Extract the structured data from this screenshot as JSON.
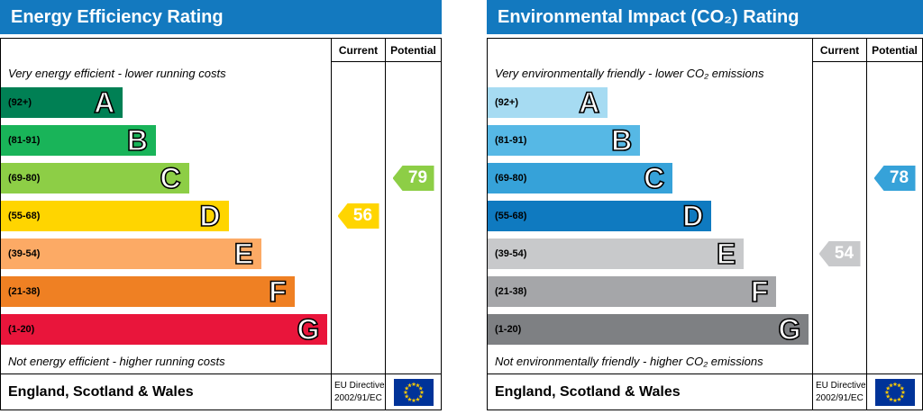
{
  "colors": {
    "header_bg": "#1379bf",
    "header_text": "#ffffff",
    "border": "#000000",
    "flag_bg": "#003399",
    "flag_stars": "#ffcc00"
  },
  "chart_data": [
    {
      "type": "bar",
      "title": "Energy Efficiency Rating",
      "columns": [
        "Current",
        "Potential"
      ],
      "top_caption": "Very energy efficient - lower running costs",
      "bottom_caption": "Not energy efficient - higher running costs",
      "bands": [
        {
          "range": "(92+)",
          "letter": "A",
          "color": "#008054",
          "width_pct": 37
        },
        {
          "range": "(81-91)",
          "letter": "B",
          "color": "#19b459",
          "width_pct": 47
        },
        {
          "range": "(69-80)",
          "letter": "C",
          "color": "#8dce46",
          "width_pct": 57
        },
        {
          "range": "(55-68)",
          "letter": "D",
          "color": "#ffd500",
          "width_pct": 69
        },
        {
          "range": "(39-54)",
          "letter": "E",
          "color": "#fcaa65",
          "width_pct": 79
        },
        {
          "range": "(21-38)",
          "letter": "F",
          "color": "#ef8023",
          "width_pct": 89
        },
        {
          "range": "(1-20)",
          "letter": "G",
          "color": "#e9153b",
          "width_pct": 99
        }
      ],
      "current": {
        "label": "Current",
        "value": 56,
        "band_index": 3,
        "color": "#ffd500"
      },
      "potential": {
        "label": "Potential",
        "value": 79,
        "band_index": 2,
        "color": "#8dce46"
      },
      "footer": {
        "region": "England, Scotland & Wales",
        "directive_line1": "EU Directive",
        "directive_line2": "2002/91/EC"
      }
    },
    {
      "type": "bar",
      "title": "Environmental Impact (CO₂) Rating",
      "columns": [
        "Current",
        "Potential"
      ],
      "top_caption": "Very environmentally friendly - lower CO₂ emissions",
      "bottom_caption": "Not environmentally friendly - higher CO₂ emissions",
      "bands": [
        {
          "range": "(92+)",
          "letter": "A",
          "color": "#a6dbf2",
          "width_pct": 37
        },
        {
          "range": "(81-91)",
          "letter": "B",
          "color": "#56b8e5",
          "width_pct": 47
        },
        {
          "range": "(69-80)",
          "letter": "C",
          "color": "#36a2d9",
          "width_pct": 57
        },
        {
          "range": "(55-68)",
          "letter": "D",
          "color": "#0f7ac0",
          "width_pct": 69
        },
        {
          "range": "(39-54)",
          "letter": "E",
          "color": "#c8c9cb",
          "width_pct": 79
        },
        {
          "range": "(21-38)",
          "letter": "F",
          "color": "#a5a6a9",
          "width_pct": 89
        },
        {
          "range": "(1-20)",
          "letter": "G",
          "color": "#7e8083",
          "width_pct": 99
        }
      ],
      "current": {
        "label": "Current",
        "value": 54,
        "band_index": 4,
        "color": "#c8c9cb"
      },
      "potential": {
        "label": "Potential",
        "value": 78,
        "band_index": 2,
        "color": "#36a2d9"
      },
      "footer": {
        "region": "England, Scotland & Wales",
        "directive_line1": "EU Directive",
        "directive_line2": "2002/91/EC"
      }
    }
  ]
}
